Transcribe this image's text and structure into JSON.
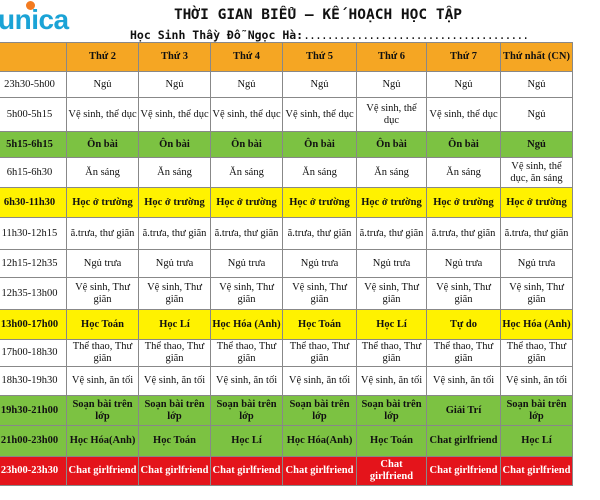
{
  "logo": {
    "text": "unica"
  },
  "title": "THỜI GIAN BIỂU – KẾ HOẠCH HỌC TẬP",
  "subtitle": {
    "label": "Học Sinh Thầy Đỗ Ngọc Hà:",
    "dots": "......................................"
  },
  "colors": {
    "header": "#f5a623",
    "green": "#7cc242",
    "yellow": "#fff200",
    "red": "#e4141b",
    "logo": "#1ba3d6",
    "logo_dot": "#f27b21"
  },
  "headers": [
    "",
    "Thứ 2",
    "Thứ 3",
    "Thứ 4",
    "Thứ 5",
    "Thứ 6",
    "Thứ 7",
    "Thứ nhất (CN)"
  ],
  "rows": [
    {
      "style": "plain",
      "cells": [
        "23h30-5h00",
        "Ngủ",
        "Ngủ",
        "Ngủ",
        "Ngủ",
        "Ngủ",
        "Ngủ",
        "Ngủ"
      ]
    },
    {
      "style": "plain",
      "cells": [
        "5h00-5h15",
        "Vệ sinh, thể dục",
        "Vệ sinh, thể dục",
        "Vệ sinh, thể dục",
        "Vệ sinh, thể dục",
        "Vệ sinh, thể dục",
        "Vệ sinh, thể dục",
        "Ngủ"
      ]
    },
    {
      "style": "green",
      "cells": [
        "5h15-6h15",
        "Ôn bài",
        "Ôn bài",
        "Ôn bài",
        "Ôn bài",
        "Ôn bài",
        "Ôn bài",
        "Ngủ"
      ]
    },
    {
      "style": "plain",
      "cells": [
        "6h15-6h30",
        "Ăn sáng",
        "Ăn sáng",
        "Ăn sáng",
        "Ăn sáng",
        "Ăn sáng",
        "Ăn sáng",
        "Vệ sinh, thể dục, ăn sáng"
      ]
    },
    {
      "style": "yellow",
      "cells": [
        "6h30-11h30",
        "Học ở trường",
        "Học ở trường",
        "Học ở trường",
        "Học ở trường",
        "Học ở trường",
        "Học ở trường",
        "Học ở trường"
      ]
    },
    {
      "style": "plain",
      "cells": [
        "11h30-12h15",
        "ă.trưa, thư giãn",
        "ă.trưa, thư giãn",
        "ă.trưa, thư giãn",
        "ă.trưa, thư giãn",
        "ă.trưa, thư giãn",
        "ă.trưa, thư giãn",
        "ă.trưa, thư giãn"
      ]
    },
    {
      "style": "plain",
      "cells": [
        "12h15-12h35",
        "Ngủ trưa",
        "Ngủ trưa",
        "Ngủ trưa",
        "Ngủ trưa",
        "Ngủ trưa",
        "Ngủ trưa",
        "Ngủ trưa"
      ]
    },
    {
      "style": "plain",
      "cells": [
        "12h35-13h00",
        "Vệ sinh, Thư giãn",
        "Vệ sinh, Thư giãn",
        "Vệ sinh, Thư giãn",
        "Vệ sinh, Thư giãn",
        "Vệ sinh, Thư giãn",
        "Vệ sinh, Thư giãn",
        "Vệ sinh, Thư giãn"
      ]
    },
    {
      "style": "yellow",
      "cells": [
        "13h00-17h00",
        "Học Toán",
        "Học Lí",
        "Học Hóa (Anh)",
        "Học Toán",
        "Học Lí",
        "Tự do",
        "Học Hóa (Anh)"
      ]
    },
    {
      "style": "plain",
      "cells": [
        "17h00-18h30",
        "Thể thao, Thư giãn",
        "Thể thao, Thư giãn",
        "Thể thao, Thư giãn",
        "Thể thao, Thư giãn",
        "Thể thao, Thư giãn",
        "Thể thao, Thư giãn",
        "Thể thao, Thư giãn"
      ]
    },
    {
      "style": "plain",
      "cells": [
        "18h30-19h30",
        "Vệ sinh, ăn tối",
        "Vệ sinh, ăn tối",
        "Vệ sinh, ăn tối",
        "Vệ sinh, ăn tối",
        "Vệ sinh, ăn tối",
        "Vệ sinh, ăn tối",
        "Vệ sinh, ăn tối"
      ]
    },
    {
      "style": "green",
      "cells": [
        "19h30-21h00",
        "Soạn bài trên lớp",
        "Soạn bài trên lớp",
        "Soạn bài trên lớp",
        "Soạn bài trên lớp",
        "Soạn bài trên lớp",
        "Giải Trí",
        "Soạn bài trên lớp"
      ]
    },
    {
      "style": "green",
      "cells": [
        "21h00-23h00",
        "Học Hóa(Anh)",
        "Học Toán",
        "Học Lí",
        "Học Hóa(Anh)",
        "Học Toán",
        "Chat girlfriend",
        "Học Lí"
      ]
    },
    {
      "style": "red",
      "cells": [
        "23h00-23h30",
        "Chat girlfriend",
        "Chat girlfriend",
        "Chat girlfriend",
        "Chat girlfriend",
        "Chat girlfriend",
        "Chat girlfriend",
        "Chat girlfriend"
      ]
    }
  ]
}
